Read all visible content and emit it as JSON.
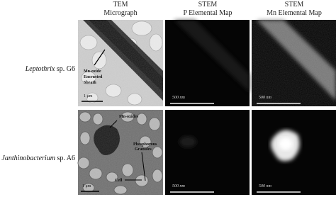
{
  "columns": [
    {
      "line1": "TEM",
      "line2": "Micrograph"
    },
    {
      "line1": "STEM",
      "line2": "P Elemental Map"
    },
    {
      "line1": "STEM",
      "line2": "Mn Elemental Map"
    }
  ],
  "rows": [
    {
      "organism": "Leptothrix",
      "strain": "sp. G6",
      "tem": {
        "annotation": [
          "Mn-oxide",
          "Encrusted",
          "Sheath"
        ],
        "scale": "1 μm"
      },
      "p_map": {
        "scale": "500 nm"
      },
      "mn_map": {
        "scale": "500 nm"
      }
    },
    {
      "organism": "Janthinobacterium",
      "strain": "sp. A6",
      "tem": {
        "oxides": "Mn-oxides",
        "granules": [
          "Phosphorous",
          "Granules"
        ],
        "cell": "Cell",
        "scale": "1 μm"
      },
      "p_map": {
        "scale": "500 nm"
      },
      "mn_map": {
        "scale": "500 nm"
      }
    }
  ]
}
